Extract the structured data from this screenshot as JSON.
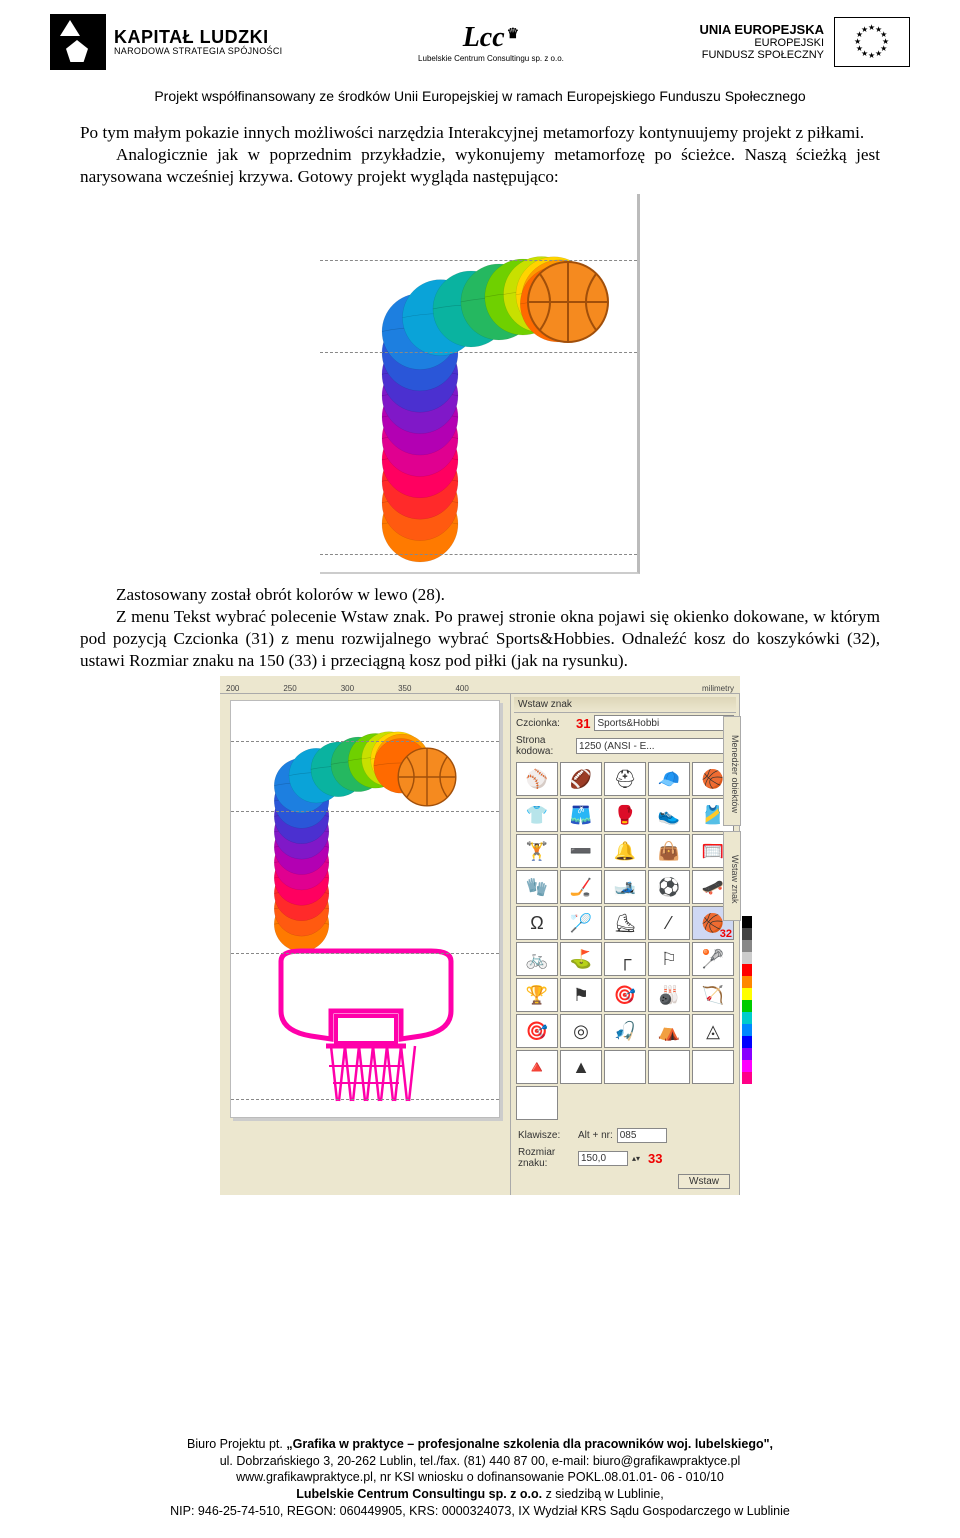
{
  "header": {
    "kl_title": "KAPITAŁ LUDZKI",
    "kl_sub": "NARODOWA STRATEGIA SPÓJNOŚCI",
    "lcc_title": "Lcc",
    "lcc_sub": "Lubelskie Centrum Consultingu sp. z o.o.",
    "eu_l1": "UNIA EUROPEJSKA",
    "eu_l2": "EUROPEJSKI",
    "eu_l3": "FUNDUSZ SPOŁECZNY"
  },
  "subtitle": "Projekt współfinansowany ze środków Unii Europejskiej w ramach Europejskiego Funduszu Społecznego",
  "para1": "Po tym małym pokazie innych możliwości narzędzia Interakcyjnej metamorfozy kontynuujemy projekt z piłkami.",
  "para2": "Analogicznie jak w poprzednim przykładzie, wykonujemy metamorfozę po ścieżce. Naszą ścieżką jest narysowana wcześniej krzywa. Gotowy projekt wygląda następująco:",
  "para3": "Zastosowany został obrót kolorów w lewo (28).",
  "para4": "Z menu Tekst wybrać polecenie Wstaw znak. Po prawej stronie okna pojawi się okienko dokowane, w którym pod pozycją Czcionka (31) z menu rozwijalnego wybrać Sports&Hobbies. Odnaleźć kosz do koszykówki (32), ustawi Rozmiar znaku na 150 (33) i przeciągną kosz pod piłki (jak na rysunku).",
  "fig1": {
    "colors": [
      "#ff6a00",
      "#ff9a00",
      "#ffd400",
      "#c8e000",
      "#6fd000",
      "#25b860",
      "#0ab3a0",
      "#0aa3d8",
      "#1d7fe0",
      "#2a56d8",
      "#4b30d0",
      "#8018c8",
      "#b300b3",
      "#e00090",
      "#ff0060",
      "#ff2a2a",
      "#ff5a10",
      "#ff7a00"
    ],
    "basketball_color": "#f58a1f",
    "basketball_line": "#a14f0a"
  },
  "ruler": {
    "ticks": [
      "200",
      "250",
      "300",
      "350",
      "400"
    ],
    "unit": "milimetry"
  },
  "panel": {
    "title": "Wstaw znak",
    "font_label": "Czcionka:",
    "font_value": "Sports&Hobbi",
    "page_label": "Strona kodowa:",
    "page_value": "1250 (ANSI - E...",
    "marker31": "31",
    "marker32": "32",
    "marker33": "33",
    "key_label": "Klawisze:",
    "key_prefix": "Alt + nr:",
    "key_value": "085",
    "size_label": "Rozmiar znaku:",
    "size_value": "150,0",
    "insert_btn": "Wstaw",
    "sidetab1": "Menedżer obiektów",
    "sidetab2": "Wstaw znak",
    "glyphs": [
      "⚾",
      "🏈",
      "⛑",
      "🧢",
      "🏀",
      "👕",
      "🩳",
      "🥊",
      "👟",
      "🎽",
      "🏋",
      "➖",
      "🔔",
      "👜",
      "🥅",
      "🧤",
      "🏒",
      "🎿",
      "⚽",
      "🛹",
      "Ω",
      "🏸",
      "⛸",
      "⁄",
      "🏀",
      "🚲",
      "⛳",
      "┌",
      "⚐",
      "🥍",
      "🏆",
      "⚑",
      "🎯",
      "🎳",
      "🏹",
      "🎯",
      "◎",
      "🎣",
      "⛺",
      "◬",
      "🔺",
      "▲",
      "",
      "",
      "",
      ""
    ]
  },
  "hoop": {
    "stroke": "#ff00aa"
  },
  "color_strip": [
    "#000",
    "#444",
    "#888",
    "#ccc",
    "#f00",
    "#f80",
    "#ff0",
    "#0c0",
    "#0cc",
    "#08f",
    "#00f",
    "#80f",
    "#f0f",
    "#f08"
  ],
  "footer": {
    "l1a": "Biuro Projektu pt. ",
    "l1b": "„Grafika w praktyce – profesjonalne szkolenia dla pracowników woj. lubelskiego\",",
    "l2": "ul. Dobrzańskiego 3, 20-262 Lublin, tel./fax. (81) 440 87 00, e-mail: biuro@grafikawpraktyce.pl",
    "l3": "www.grafikawpraktyce.pl, nr KSI wniosku o dofinansowanie POKL.08.01.01- 06 - 010/10",
    "l4a": "Lubelskie Centrum Consultingu sp. z o.o.",
    "l4b": " z siedzibą w Lublinie,",
    "l5": "NIP: 946-25-74-510, REGON: 060449905, KRS: 0000324073, IX Wydział KRS Sądu Gospodarczego w Lublinie"
  }
}
